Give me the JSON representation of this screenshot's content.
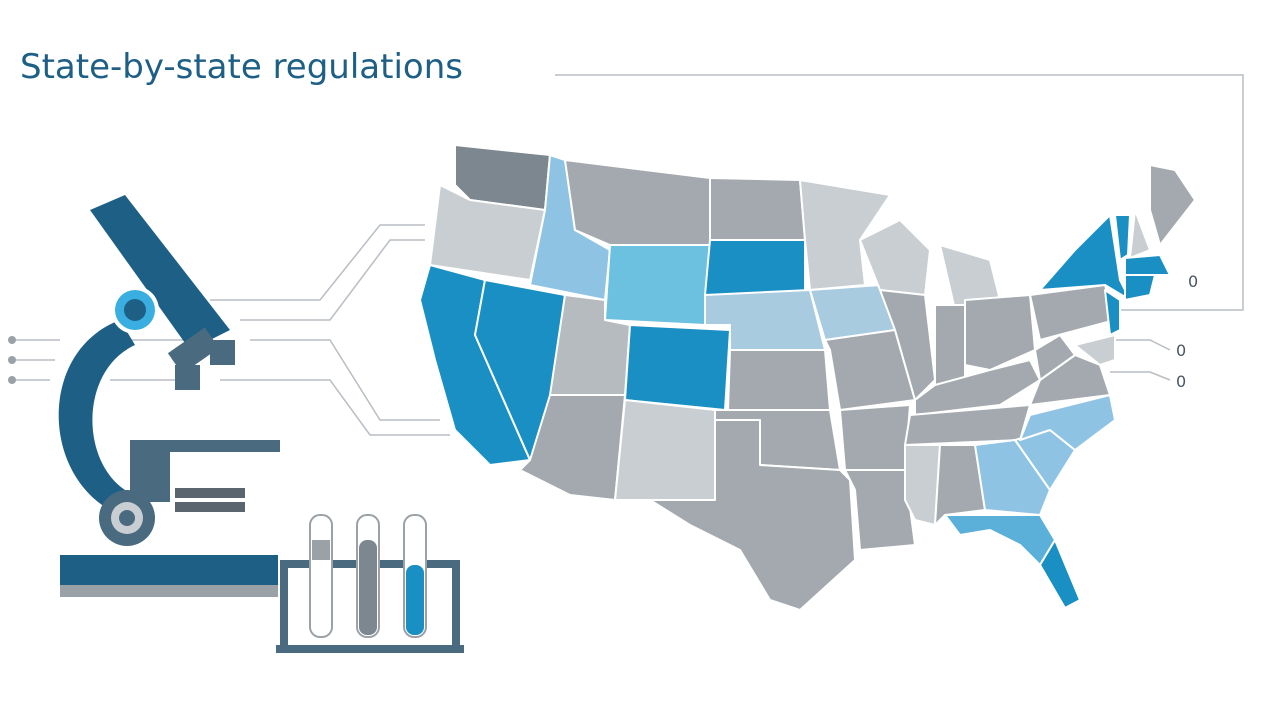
{
  "title": "State-by-state regulations",
  "callouts": [
    "0",
    "0",
    "0"
  ]
}
